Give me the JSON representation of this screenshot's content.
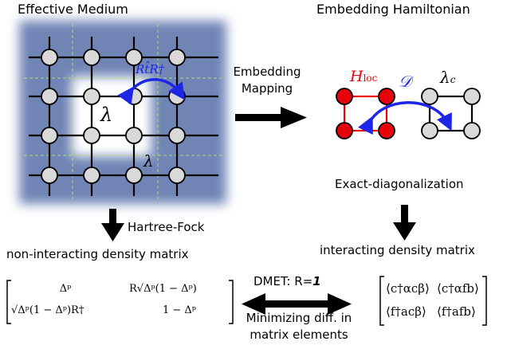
{
  "effective_medium": {
    "title": "Effective Medium",
    "lambda_center": "λ",
    "lambda_corner": "λ",
    "hopping_label": "Rt̂R†"
  },
  "embedding_hamiltonian": {
    "title": "Embedding Hamiltonian",
    "h_loc": "H",
    "h_loc_sub": "loc",
    "d_label": "𝒟",
    "lambda_c": "λ",
    "lambda_c_sub": "c"
  },
  "mapping": {
    "line1": "Embedding",
    "line2": "Mapping"
  },
  "steps": {
    "hartree_fock": "Hartree-Fock",
    "exact_diag": "Exact-diagonalization",
    "non_interacting": "non-interacting density matrix",
    "interacting": "interacting density matrix"
  },
  "dmet": {
    "prefix": "DMET: R=",
    "value": "1"
  },
  "minimizing": {
    "line1": "Minimizing diff. in",
    "line2": "matrix elements"
  },
  "left_matrix": {
    "a11": "Δᵖ",
    "a12": "R√Δᵖ(1 − Δᵖ)",
    "a21": "√Δᵖ(1 − Δᵖ)R†",
    "a22": "1 − Δᵖ"
  },
  "right_matrix": {
    "b11": "⟨c†αcβ⟩",
    "b12": "⟨c†αfb⟩",
    "b21": "⟨f†acβ⟩",
    "b22": "⟨f†afb⟩"
  },
  "colors": {
    "medium_blue": "#6f84b6",
    "hopping_arrow": "#1e26e6",
    "h_loc_red": "#e8000b",
    "site_gray": "#d9d9d9",
    "dashed_green": "#a8e070"
  }
}
